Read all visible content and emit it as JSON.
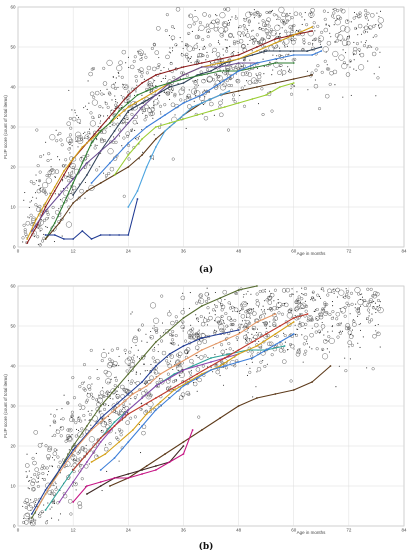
{
  "chart_data": [
    {
      "type": "scatter",
      "panel_label": "(a)",
      "xlabel": "Age in months",
      "ylabel": "FLIP score (count of total items)",
      "xlim": [
        0,
        84
      ],
      "ylim": [
        0,
        60
      ],
      "xticks": [
        0,
        12,
        24,
        36,
        48,
        60,
        72,
        84
      ],
      "yticks": [
        0,
        10,
        20,
        30,
        40,
        50,
        60
      ],
      "grid": true,
      "legend": "none",
      "scatter_seed": 11,
      "series": [
        {
          "color": "#2e4057",
          "x": [
            12,
            15,
            18,
            21,
            24,
            27,
            30,
            33,
            36,
            39,
            42,
            45,
            48,
            51,
            54,
            57,
            60,
            63,
            66
          ],
          "y": [
            13,
            18,
            24,
            29,
            34,
            36,
            38,
            40,
            41,
            43,
            44,
            46,
            47,
            48,
            49,
            49,
            49,
            49,
            50
          ]
        },
        {
          "color": "#8b1a1a",
          "x": [
            2,
            4,
            6,
            8,
            10,
            12,
            15,
            18,
            21,
            24,
            27,
            30,
            33,
            36,
            40,
            44,
            48,
            52,
            56,
            60,
            64
          ],
          "y": [
            1,
            5,
            10,
            14,
            18,
            22,
            26,
            30,
            34,
            38,
            41,
            43,
            44,
            45,
            46,
            47,
            48,
            50,
            52,
            53,
            54
          ]
        },
        {
          "color": "#d4a017",
          "x": [
            2,
            4,
            6,
            8,
            10,
            12,
            14,
            16,
            18,
            20,
            22,
            24,
            27,
            30,
            33,
            36,
            40,
            44,
            48,
            52,
            56,
            60,
            64
          ],
          "y": [
            2,
            7,
            11,
            15,
            19,
            22,
            25,
            27,
            29,
            31,
            33,
            35,
            37,
            39,
            41,
            43,
            45,
            46,
            47,
            49,
            51,
            53,
            55
          ]
        },
        {
          "color": "#6a4c93",
          "x": [
            3,
            6,
            9,
            12,
            15,
            18,
            21,
            24,
            27,
            30,
            33,
            36,
            40,
            44,
            48,
            52
          ],
          "y": [
            4,
            9,
            13,
            17,
            21,
            24,
            27,
            31,
            35,
            38,
            41,
            43,
            45,
            45,
            46,
            46
          ]
        },
        {
          "color": "#2e7d32",
          "x": [
            6,
            8,
            10,
            12,
            14,
            16,
            18,
            20,
            22,
            24,
            26,
            28,
            30,
            33,
            36,
            40,
            44,
            48,
            52,
            56,
            60
          ],
          "y": [
            2,
            6,
            11,
            16,
            21,
            26,
            29,
            31,
            34,
            36,
            38,
            39,
            40,
            41,
            42,
            43,
            44,
            44,
            45,
            46,
            46
          ]
        },
        {
          "color": "#5d3a1a",
          "x": [
            6,
            9,
            12,
            15,
            18,
            21,
            24,
            27,
            30,
            33,
            36,
            40,
            44,
            48,
            52,
            56,
            60,
            64
          ],
          "y": [
            2,
            6,
            11,
            14,
            16,
            18,
            20,
            23,
            27,
            30,
            33,
            36,
            38,
            39,
            40,
            41,
            42,
            43
          ]
        },
        {
          "color": "#1f3a93",
          "x": [
            6,
            8,
            10,
            12,
            14,
            16,
            18,
            20,
            22,
            24,
            26
          ],
          "y": [
            3,
            3,
            2,
            2,
            4,
            2,
            3,
            3,
            3,
            3,
            12
          ]
        },
        {
          "color": "#4aa3df",
          "x": [
            24,
            26,
            28,
            30,
            32,
            34,
            36,
            38,
            40,
            42,
            44,
            46
          ],
          "y": [
            10,
            14,
            20,
            25,
            29,
            31,
            33,
            35,
            36,
            37,
            38,
            39
          ]
        },
        {
          "color": "#9acd32",
          "x": [
            21,
            24,
            27,
            30,
            33,
            36,
            39,
            42,
            45,
            48,
            51,
            54,
            57,
            60
          ],
          "y": [
            18,
            23,
            27,
            30,
            31,
            32,
            33,
            34,
            35,
            36,
            37,
            38,
            40,
            41
          ]
        },
        {
          "color": "#3b7dd8",
          "x": [
            16,
            20,
            24,
            28,
            32,
            36,
            40,
            44,
            48,
            52,
            56,
            60,
            64,
            66
          ],
          "y": [
            16,
            21,
            26,
            30,
            33,
            36,
            38,
            41,
            44,
            46,
            47,
            48,
            48,
            49
          ]
        }
      ]
    },
    {
      "type": "scatter",
      "panel_label": "(b)",
      "xlabel": "Age in months",
      "ylabel": "FLIP score (count of total items)",
      "xlim": [
        0,
        84
      ],
      "ylim": [
        0,
        60
      ],
      "xticks": [
        0,
        12,
        24,
        36,
        48,
        60,
        72,
        84
      ],
      "yticks": [
        0,
        10,
        20,
        30,
        40,
        50,
        60
      ],
      "grid": true,
      "legend": "none",
      "scatter_seed": 29,
      "series": [
        {
          "color": "#556b2f",
          "x": [
            3,
            6,
            9,
            12,
            15,
            18,
            21,
            24,
            27,
            30,
            33,
            36,
            40,
            44,
            48,
            52
          ],
          "y": [
            2,
            8,
            14,
            20,
            25,
            30,
            34,
            38,
            42,
            46,
            49,
            52,
            55,
            57,
            59,
            60
          ]
        },
        {
          "color": "#1f3a93",
          "x": [
            3,
            6,
            9,
            12,
            15,
            18,
            21,
            24,
            27,
            30,
            33,
            36,
            40,
            44,
            48
          ],
          "y": [
            3,
            9,
            14,
            19,
            23,
            27,
            30,
            33,
            36,
            40,
            43,
            45,
            47,
            48,
            49
          ]
        },
        {
          "color": "#e59866",
          "x": [
            4,
            7,
            10,
            13,
            16,
            19,
            22,
            25,
            28,
            31,
            34,
            37,
            40,
            44,
            48,
            52,
            56
          ],
          "y": [
            4,
            10,
            15,
            20,
            24,
            27,
            30,
            33,
            35,
            38,
            40,
            42,
            44,
            46,
            48,
            51,
            53
          ]
        },
        {
          "color": "#2aa198",
          "x": [
            6,
            9,
            12,
            15,
            18,
            21,
            24,
            27,
            30,
            34,
            38,
            42,
            46,
            50,
            54,
            58
          ],
          "y": [
            4,
            9,
            14,
            18,
            22,
            26,
            29,
            32,
            35,
            38,
            40,
            42,
            43,
            44,
            44,
            45
          ]
        },
        {
          "color": "#8e44ad",
          "x": [
            9,
            12,
            15,
            18,
            21,
            24,
            27,
            30,
            33,
            36,
            39,
            42,
            45,
            48
          ],
          "y": [
            6,
            11,
            16,
            21,
            25,
            29,
            32,
            35,
            37,
            39,
            40,
            41,
            42,
            43
          ]
        },
        {
          "color": "#c0392b",
          "x": [
            12,
            15,
            18,
            21,
            24,
            27,
            30,
            33,
            36,
            39,
            42,
            45,
            48,
            51,
            54,
            57,
            60,
            63
          ],
          "y": [
            14,
            18,
            22,
            25,
            28,
            30,
            32,
            34,
            36,
            38,
            40,
            42,
            44,
            46,
            48,
            50,
            52,
            53
          ]
        },
        {
          "color": "#d4a017",
          "x": [
            16,
            19,
            22,
            25,
            28,
            31,
            34,
            37,
            40,
            44,
            48,
            52,
            56,
            60
          ],
          "y": [
            16,
            18,
            21,
            24,
            28,
            31,
            34,
            36,
            38,
            40,
            43,
            45,
            48,
            51
          ]
        },
        {
          "color": "#3b7dd8",
          "x": [
            18,
            21,
            24,
            27,
            30,
            33,
            36,
            39,
            42,
            45,
            48,
            51,
            54,
            57,
            60
          ],
          "y": [
            14,
            17,
            21,
            25,
            29,
            32,
            35,
            37,
            39,
            40,
            41,
            42,
            44,
            46,
            48
          ]
        },
        {
          "color": "#5d3a1a",
          "x": [
            20,
            24,
            28,
            32,
            36,
            40,
            44,
            48,
            52,
            56,
            60,
            64,
            68
          ],
          "y": [
            10,
            12,
            15,
            18,
            21,
            24,
            27,
            30,
            32,
            33,
            34,
            36,
            40
          ]
        },
        {
          "color": "#3e2723",
          "x": [
            15,
            18,
            21,
            24,
            27,
            30,
            33,
            36
          ],
          "y": [
            8,
            10,
            12,
            13,
            14,
            15,
            16,
            20
          ]
        },
        {
          "color": "#c71585",
          "x": [
            12,
            15,
            18,
            21,
            24,
            27,
            30,
            33,
            36,
            38
          ],
          "y": [
            6,
            10,
            11,
            12,
            12,
            13,
            14,
            16,
            18,
            24
          ]
        }
      ]
    }
  ]
}
